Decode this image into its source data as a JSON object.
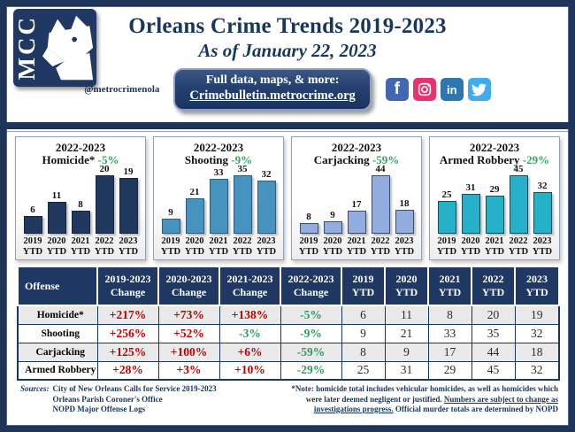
{
  "page": {
    "title": "Orleans Crime Trends 2019-2023",
    "subtitle": "As of January 22, 2023",
    "handle": "@metrocrimenola",
    "logo_text": "MCC"
  },
  "cta": {
    "line1": "Full data, maps, & more:",
    "line2": "Crimebulletin.metrocrime.org"
  },
  "social": [
    {
      "name": "facebook",
      "color": "#4267B2"
    },
    {
      "name": "instagram",
      "color": "#E8336E"
    },
    {
      "name": "linkedin",
      "color": "#2D76B0"
    },
    {
      "name": "twitter",
      "color": "#41ABEE"
    }
  ],
  "chart_data": [
    {
      "type": "bar",
      "title": "2022-2023",
      "label": "Homicide*",
      "change": "-5%",
      "categories": [
        "2019 YTD",
        "2020 YTD",
        "2021 YTD",
        "2022 YTD",
        "2023 YTD"
      ],
      "values": [
        6,
        11,
        8,
        20,
        19
      ],
      "color": "#20375E",
      "border": "#15263F"
    },
    {
      "type": "bar",
      "title": "2022-2023",
      "label": "Shooting",
      "change": "-9%",
      "categories": [
        "2019 YTD",
        "2020 YTD",
        "2021 YTD",
        "2022 YTD",
        "2023 YTD"
      ],
      "values": [
        9,
        21,
        33,
        35,
        32
      ],
      "color": "#4793C0",
      "border": "#2C5F7E"
    },
    {
      "type": "bar",
      "title": "2022-2023",
      "label": "Carjacking",
      "change": "-59%",
      "categories": [
        "2019 YTD",
        "2020 YTD",
        "2021 YTD",
        "2022 YTD",
        "2023 YTD"
      ],
      "values": [
        8,
        9,
        17,
        44,
        18
      ],
      "color": "#93ACDE",
      "border": "#3A4E72"
    },
    {
      "type": "bar",
      "title": "2022-2023",
      "label": "Armed Robbery",
      "change": "-29%",
      "categories": [
        "2019 YTD",
        "2020 YTD",
        "2021 YTD",
        "2022 YTD",
        "2023 YTD"
      ],
      "values": [
        25,
        31,
        29,
        45,
        32
      ],
      "color": "#27B1C9",
      "border": "#1A4A5E"
    }
  ],
  "table": {
    "headers": [
      "Offense",
      "2019-2023\nChange",
      "2020-2023\nChange",
      "2021-2023\nChange",
      "2022-2023\nChange",
      "2019\nYTD",
      "2020\nYTD",
      "2021\nYTD",
      "2022\nYTD",
      "2023\nYTD"
    ],
    "rows": [
      {
        "offense": "Homicide*",
        "changes": [
          "+217%",
          "+73%",
          "+138%",
          "-5%"
        ],
        "ytd": [
          6,
          11,
          8,
          20,
          19
        ]
      },
      {
        "offense": "Shooting",
        "changes": [
          "+256%",
          "+52%",
          "-3%",
          "-9%"
        ],
        "ytd": [
          9,
          21,
          33,
          35,
          32
        ]
      },
      {
        "offense": "Carjacking",
        "changes": [
          "+125%",
          "+100%",
          "+6%",
          "-59%"
        ],
        "ytd": [
          8,
          9,
          17,
          44,
          18
        ]
      },
      {
        "offense": "Armed Robbery",
        "changes": [
          "+28%",
          "+3%",
          "+10%",
          "-29%"
        ],
        "ytd": [
          25,
          31,
          29,
          45,
          32
        ]
      }
    ]
  },
  "footer": {
    "sources_label": "Sources:",
    "sources": [
      "City of New Orleans Calls for Service 2019-2023",
      "Orleans Parish Coroner's Office",
      "NOPD Major Offense Logs"
    ],
    "note_part1": "*Note: homicide total includes vehicular homicides, as well as homicides which were later deemed negligent or justified. ",
    "note_underlined": "Numbers are subject to change as investigations progress.",
    "note_part2": " Official murder totals are determined by NOPD"
  },
  "colors": {
    "navy": "#1F3864",
    "red": "#C00000",
    "green": "#2E9C5C",
    "chart_green": "#3AA35F"
  }
}
